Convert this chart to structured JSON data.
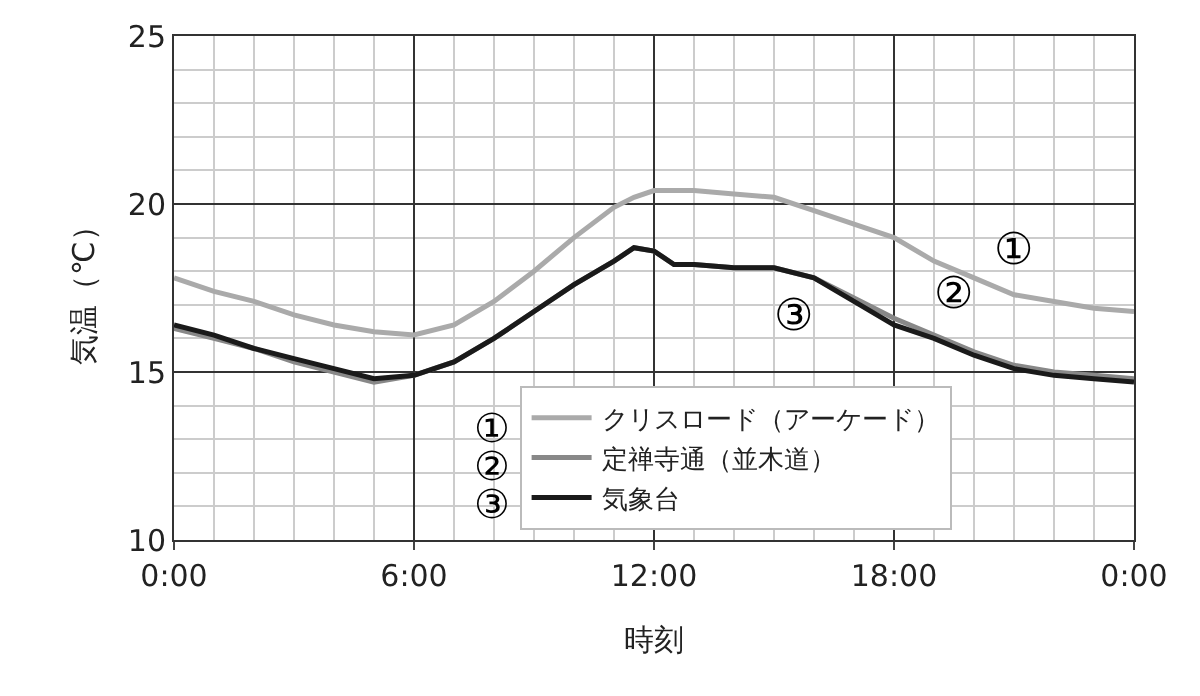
{
  "chart_data": {
    "type": "line",
    "xlabel": "時刻",
    "ylabel": "気温（℃）",
    "x": [
      0,
      1,
      2,
      3,
      4,
      5,
      6,
      7,
      8,
      9,
      10,
      11,
      11.5,
      12,
      12.5,
      13,
      14,
      15,
      16,
      17,
      18,
      19,
      20,
      21,
      22,
      23,
      24
    ],
    "xlim": [
      0,
      24
    ],
    "xticks": [
      {
        "value": 0,
        "label": "0:00"
      },
      {
        "value": 6,
        "label": "6:00"
      },
      {
        "value": 12,
        "label": "12:00"
      },
      {
        "value": 18,
        "label": "18:00"
      },
      {
        "value": 24,
        "label": "0:00"
      }
    ],
    "ylim": [
      10,
      25
    ],
    "yticks": [
      10,
      15,
      20,
      25
    ],
    "grid": true,
    "legend": "bottom",
    "marker": "none",
    "line_style": "solid",
    "series": [
      {
        "name": "クリスロード（アーケード）",
        "color": "#aaaaaa",
        "values": [
          17.8,
          17.4,
          17.1,
          16.7,
          16.4,
          16.2,
          16.1,
          16.4,
          17.1,
          18.0,
          19.0,
          19.9,
          20.2,
          20.4,
          20.4,
          20.4,
          20.3,
          20.2,
          19.8,
          19.4,
          19.0,
          18.3,
          17.8,
          17.3,
          17.1,
          16.9,
          16.8
        ]
      },
      {
        "name": "定禅寺通（並木道）",
        "color": "#888888",
        "values": [
          16.3,
          16.0,
          15.7,
          15.3,
          15.0,
          14.7,
          14.9,
          15.3,
          16.0,
          16.8,
          17.6,
          18.3,
          18.7,
          18.6,
          18.2,
          18.2,
          18.1,
          18.1,
          17.8,
          17.2,
          16.6,
          16.1,
          15.6,
          15.2,
          15.0,
          14.9,
          14.8
        ]
      },
      {
        "name": "気象台",
        "color": "#1a1a1a",
        "values": [
          16.4,
          16.1,
          15.7,
          15.4,
          15.1,
          14.8,
          14.9,
          15.3,
          16.0,
          16.8,
          17.6,
          18.3,
          18.7,
          18.6,
          18.2,
          18.2,
          18.1,
          18.1,
          17.8,
          17.1,
          16.4,
          16.0,
          15.5,
          15.1,
          14.9,
          14.8,
          14.7
        ]
      }
    ],
    "annotations": [
      "①",
      "②",
      "③",
      "①",
      "②",
      "③"
    ]
  }
}
